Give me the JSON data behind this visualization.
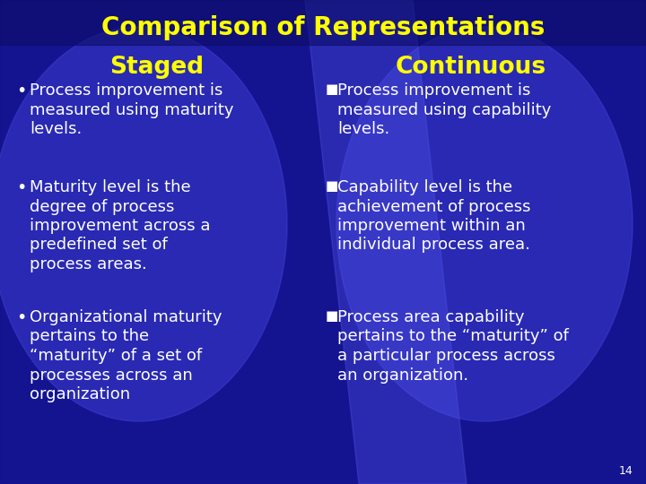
{
  "title": "Comparison of Representations",
  "title_color": "#FFFF00",
  "title_fontsize": 20,
  "staged_header": "Staged",
  "continuous_header": "Continuous",
  "header_color": "#FFFF00",
  "header_fontsize": 19,
  "text_color": "#FFFFFF",
  "text_fontsize": 13,
  "bg_color": "#1a1aaa",
  "page_number": "14",
  "staged_bullets": [
    "Process improvement is\nmeasured using maturity\nlevels.",
    "Maturity level is the\ndegree of process\nimprovement across a\npredefined set of\nprocess areas.",
    "Organizational maturity\npertains to the\n“maturity” of a set of\nprocesses across an\norganization"
  ],
  "continuous_bullets": [
    "Process improvement is\nmeasured using capability\nlevels.",
    "Capability level is the\nachievement of process\nimprovement within an\nindividual process area.",
    "Process area capability\npertains to the “maturity” of\na particular process across\nan organization."
  ],
  "bullet_symbol_staged": "•",
  "bullet_symbol_continuous": "■"
}
